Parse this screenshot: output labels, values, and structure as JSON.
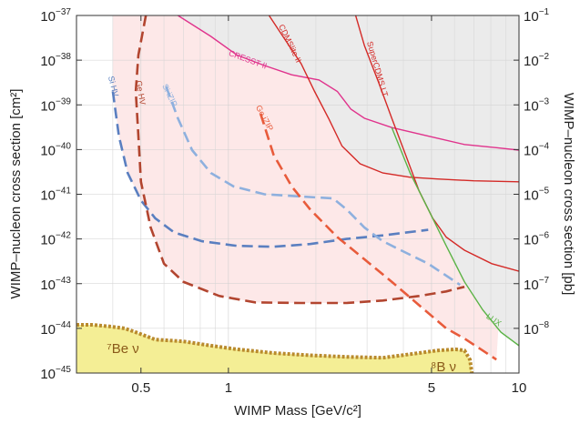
{
  "chart_data": {
    "type": "line",
    "xlabel": "WIMP Mass [GeV/c²]",
    "ylabel": "WIMP–nucleon cross section [cm²]",
    "y2label": "WIMP–nucleon cross section [pb]",
    "xscale": "log",
    "yscale": "log",
    "grid": true,
    "xlim": [
      0.3,
      10
    ],
    "xticks": [
      0.5,
      1,
      5,
      10
    ],
    "x_minor_ticks": [
      0.3,
      0.4,
      0.6,
      0.7,
      0.8,
      0.9,
      2,
      3,
      4,
      6,
      7,
      8,
      9
    ],
    "ylim": [
      1e-45,
      1e-37
    ],
    "yticks": [
      {
        "value": 1e-37,
        "label": "10−37"
      },
      {
        "value": 1e-38,
        "label": "10−38"
      },
      {
        "value": 1e-39,
        "label": "10−39"
      },
      {
        "value": 1e-40,
        "label": "10−40"
      },
      {
        "value": 1e-41,
        "label": "10−41"
      },
      {
        "value": 1e-42,
        "label": "10−42"
      },
      {
        "value": 1e-43,
        "label": "10−43"
      },
      {
        "value": 1e-44,
        "label": "10−44"
      },
      {
        "value": 1e-45,
        "label": "10−45"
      }
    ],
    "y2lim": [
      1e-09,
      0.1
    ],
    "y2ticks": [
      {
        "value": 0.1,
        "label": "10−1"
      },
      {
        "value": 0.01,
        "label": "10−2"
      },
      {
        "value": 0.001,
        "label": "10−3"
      },
      {
        "value": 0.0001,
        "label": "10−4"
      },
      {
        "value": 1e-05,
        "label": "10−5"
      },
      {
        "value": 1e-06,
        "label": "10−6"
      },
      {
        "value": 1e-07,
        "label": "10−7"
      },
      {
        "value": 1e-08,
        "label": "10−8"
      }
    ],
    "series": [
      {
        "name": "Si HV",
        "color": "#5a7fc0",
        "dash": "dashed",
        "fill": "#fde8e8",
        "fill_to": "top",
        "x": [
          0.4,
          0.42,
          0.45,
          0.5,
          0.56,
          0.65,
          0.81,
          1.07,
          1.43,
          1.91,
          2.55,
          3.4,
          4.87
        ],
        "values": [
          2e-39,
          2e-40,
          3e-41,
          7.3e-42,
          2.9e-42,
          1.4e-42,
          8.9e-43,
          7e-43,
          6.7e-43,
          7.7e-43,
          1e-42,
          1.2e-42,
          1.6e-42
        ]
      },
      {
        "name": "Si iZIP",
        "color": "#8eb0de",
        "dash": "dashed",
        "fill": "#fde8e8",
        "fill_to": "top",
        "x": [
          0.61,
          0.67,
          0.75,
          0.87,
          1.04,
          1.33,
          1.78,
          2.29,
          2.55,
          2.94,
          3.4,
          3.92,
          4.87,
          6.27
        ],
        "values": [
          2.6e-39,
          5e-40,
          9.7e-41,
          3e-41,
          1.5e-41,
          1e-41,
          8.9e-42,
          8.1e-42,
          4.6e-42,
          1.8e-42,
          8.9e-43,
          5.6e-43,
          2.8e-43,
          9.4e-44
        ]
      },
      {
        "name": "Ge HV",
        "color": "#b2452f",
        "dash": "dashed",
        "fill": "#fde8e8",
        "fill_to": "top",
        "x": [
          0.52,
          0.49,
          0.48,
          0.49,
          0.5,
          0.54,
          0.6,
          0.7,
          0.93,
          1.24,
          1.78,
          2.55,
          3.4,
          4.53,
          5.62,
          6.49
        ],
        "values": [
          1e-37,
          1.3e-38,
          2e-39,
          2e-40,
          1.9e-41,
          1.8e-42,
          2.8e-43,
          1.1e-43,
          5.3e-44,
          3.8e-44,
          3.7e-44,
          3.7e-44,
          4.2e-44,
          5.3e-44,
          6.7e-44,
          8.5e-44
        ]
      },
      {
        "name": "Ge iZIP",
        "color": "#e85b3b",
        "dash": "dashed",
        "fill": "#fde8e8",
        "fill_to": "top",
        "x": [
          1.29,
          1.43,
          1.65,
          1.91,
          2.37,
          2.94,
          3.65,
          4.53,
          5.62,
          6.49,
          7.5,
          8.36
        ],
        "values": [
          6.3e-40,
          7.7e-41,
          1.5e-41,
          4.6e-42,
          1.1e-42,
          3.5e-43,
          1.1e-43,
          3.3e-44,
          1e-44,
          5.9e-45,
          3.2e-45,
          2e-45
        ]
      },
      {
        "name": "CRESST II",
        "color": "#e0338c",
        "dash": "solid",
        "fill": "#ebebeb",
        "fill_to": "top",
        "x": [
          0.67,
          0.87,
          1.07,
          1.33,
          1.65,
          2.05,
          2.37,
          2.64,
          2.94,
          3.65,
          4.87,
          6.49,
          8.36,
          10
        ],
        "values": [
          1e-37,
          3.4e-38,
          1.3e-38,
          7.6e-39,
          4.7e-39,
          3.6e-39,
          2e-39,
          8e-40,
          5e-40,
          3.1e-40,
          2e-40,
          1.3e-40,
          1.1e-40,
          9.7e-41
        ]
      },
      {
        "name": "CDMSlite II",
        "color": "#d42a27",
        "dash": "solid",
        "fill": "#ebebeb",
        "fill_to": "top",
        "x": [
          1.38,
          1.54,
          1.78,
          1.98,
          2.21,
          2.46,
          2.84,
          3.4,
          4.22,
          5.23,
          6.98,
          10
        ],
        "values": [
          1e-37,
          3.4e-38,
          8.3e-39,
          2e-39,
          5e-40,
          1.2e-40,
          4.8e-41,
          3e-41,
          2.4e-41,
          2.2e-41,
          2e-41,
          1.9e-41
        ]
      },
      {
        "name": "SuperCDMS LT",
        "color": "#d42a27",
        "dash": "solid",
        "fill": "#ebebeb",
        "fill_to": "top",
        "x": [
          2.74,
          2.94,
          3.28,
          3.65,
          4.07,
          4.53,
          5.05,
          5.62,
          6.49,
          8.06,
          10
        ],
        "values": [
          1e-37,
          2.1e-38,
          3.3e-39,
          5e-40,
          7.7e-41,
          1.2e-41,
          2.9e-42,
          1.1e-42,
          5.6e-43,
          2.8e-43,
          1.9e-43
        ]
      },
      {
        "name": "LUX",
        "color": "#5bb346",
        "dash": "solid",
        "fill": "#ebebeb",
        "fill_to": "top",
        "x": [
          3.65,
          4.22,
          4.87,
          5.62,
          6.49,
          7.5,
          8.66,
          10
        ],
        "values": [
          3.1e-40,
          3e-41,
          4.6e-42,
          7e-43,
          1.1e-43,
          2.6e-44,
          8.2e-45,
          4.1e-45
        ]
      },
      {
        "labels": [
          "⁷Be ν",
          "⁸B ν"
        ],
        "color": "#b98a2d",
        "dash": "dotted",
        "fill": "#f4ee95",
        "fill_to": "bottom",
        "x": [
          0.3,
          0.34,
          0.39,
          0.44,
          0.49,
          0.56,
          0.7,
          0.87,
          1.07,
          1.43,
          1.91,
          2.55,
          3.4,
          4.53,
          5.23,
          6.04,
          6.49,
          6.78,
          6.88
        ],
        "values": [
          1.2e-44,
          1.2e-44,
          1.1e-44,
          1e-44,
          7.8e-45,
          5.6e-45,
          5.1e-45,
          4.1e-45,
          3.4e-45,
          2.8e-45,
          2.5e-45,
          2.3e-45,
          2.2e-45,
          2.8e-45,
          3.2e-45,
          3.4e-45,
          3.2e-45,
          2e-45,
          1e-45
        ]
      }
    ]
  }
}
